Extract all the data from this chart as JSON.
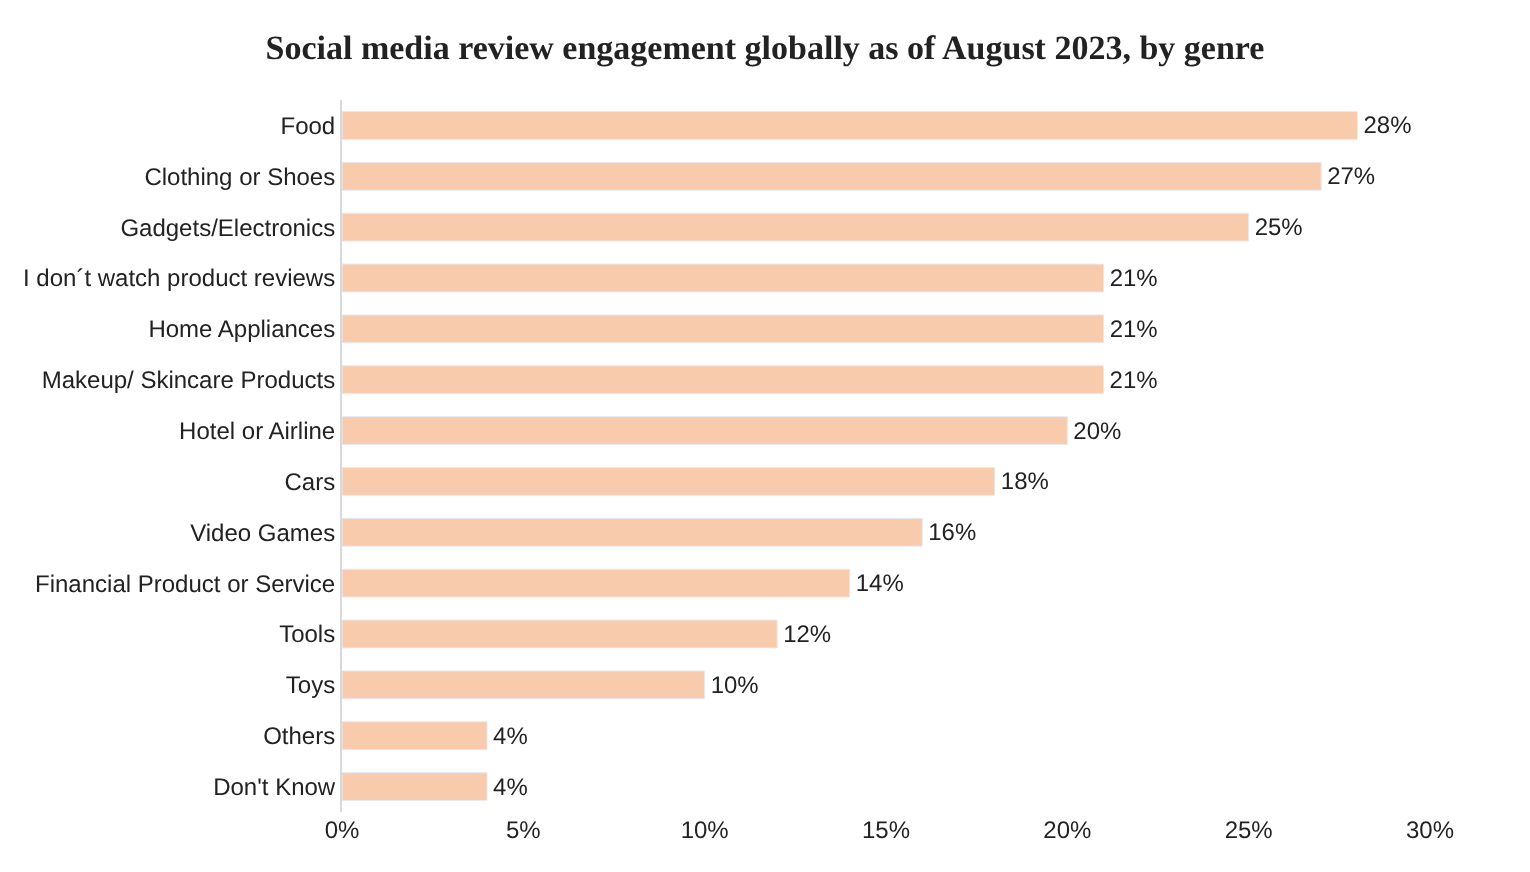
{
  "chart_data": {
    "type": "bar",
    "orientation": "horizontal",
    "title": "Social media review engagement globally as of August 2023, by genre",
    "categories": [
      "Food",
      "Clothing or Shoes",
      "Gadgets/Electronics",
      "I don´t watch product reviews",
      "Home Appliances",
      "Makeup/ Skincare Products",
      "Hotel or Airline",
      "Cars",
      "Video Games",
      "Financial Product or Service",
      "Tools",
      "Toys",
      "Others",
      "Don't Know"
    ],
    "values": [
      28,
      27,
      25,
      21,
      21,
      21,
      20,
      18,
      16,
      14,
      12,
      10,
      4,
      4
    ],
    "value_labels": [
      "28%",
      "27%",
      "25%",
      "21%",
      "21%",
      "21%",
      "20%",
      "18%",
      "16%",
      "14%",
      "12%",
      "10%",
      "4%",
      "4%"
    ],
    "color": "#f8cbad",
    "xlim": [
      0,
      30
    ],
    "xticks": [
      {
        "value": 0,
        "label": "0%"
      },
      {
        "value": 5,
        "label": "5%"
      },
      {
        "value": 10,
        "label": "10%"
      },
      {
        "value": 15,
        "label": "15%"
      },
      {
        "value": 20,
        "label": "20%"
      },
      {
        "value": 25,
        "label": "25%"
      },
      {
        "value": 30,
        "label": "30%"
      }
    ]
  }
}
